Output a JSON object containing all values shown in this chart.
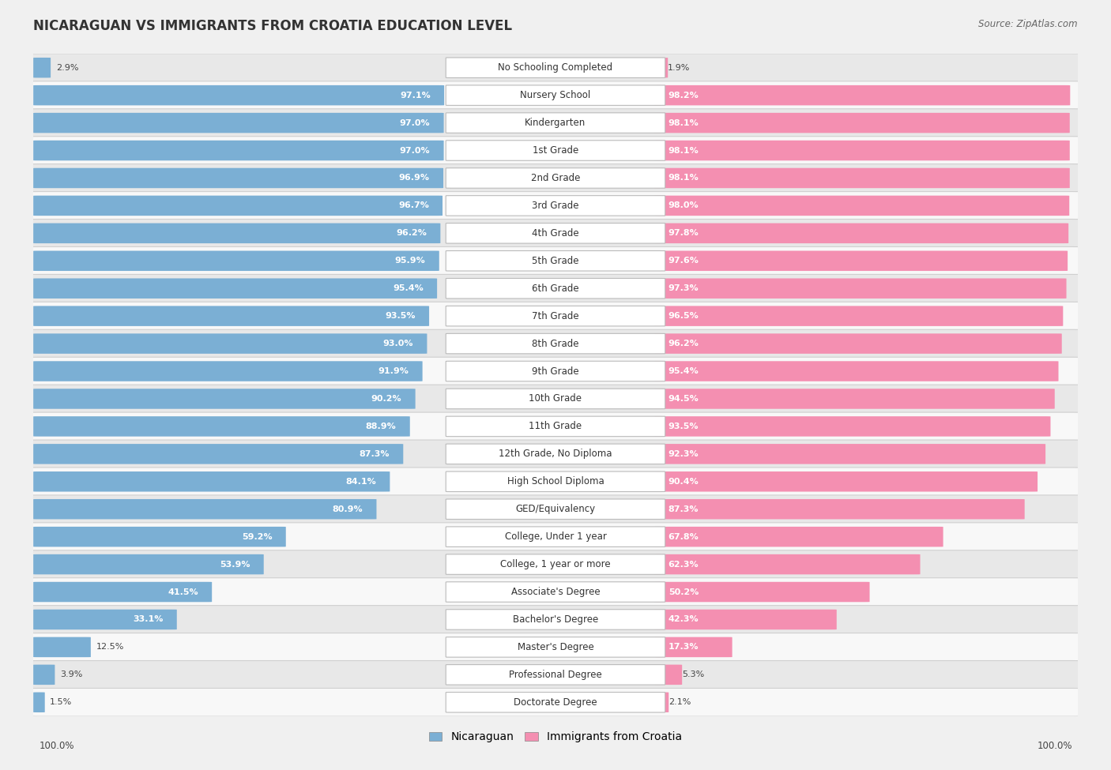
{
  "title": "NICARAGUAN VS IMMIGRANTS FROM CROATIA EDUCATION LEVEL",
  "source": "Source: ZipAtlas.com",
  "categories": [
    "No Schooling Completed",
    "Nursery School",
    "Kindergarten",
    "1st Grade",
    "2nd Grade",
    "3rd Grade",
    "4th Grade",
    "5th Grade",
    "6th Grade",
    "7th Grade",
    "8th Grade",
    "9th Grade",
    "10th Grade",
    "11th Grade",
    "12th Grade, No Diploma",
    "High School Diploma",
    "GED/Equivalency",
    "College, Under 1 year",
    "College, 1 year or more",
    "Associate's Degree",
    "Bachelor's Degree",
    "Master's Degree",
    "Professional Degree",
    "Doctorate Degree"
  ],
  "nicaraguan": [
    2.9,
    97.1,
    97.0,
    97.0,
    96.9,
    96.7,
    96.2,
    95.9,
    95.4,
    93.5,
    93.0,
    91.9,
    90.2,
    88.9,
    87.3,
    84.1,
    80.9,
    59.2,
    53.9,
    41.5,
    33.1,
    12.5,
    3.9,
    1.5
  ],
  "croatia": [
    1.9,
    98.2,
    98.1,
    98.1,
    98.1,
    98.0,
    97.8,
    97.6,
    97.3,
    96.5,
    96.2,
    95.4,
    94.5,
    93.5,
    92.3,
    90.4,
    87.3,
    67.8,
    62.3,
    50.2,
    42.3,
    17.3,
    5.3,
    2.1
  ],
  "nicaraguan_color": "#7bafd4",
  "croatia_color": "#f48fb1",
  "background_color": "#f0f0f0",
  "row_color_even": "#e8e8e8",
  "row_color_odd": "#f8f8f8",
  "label_fontsize": 8.5,
  "title_fontsize": 12,
  "legend_fontsize": 10,
  "value_fontsize": 8
}
